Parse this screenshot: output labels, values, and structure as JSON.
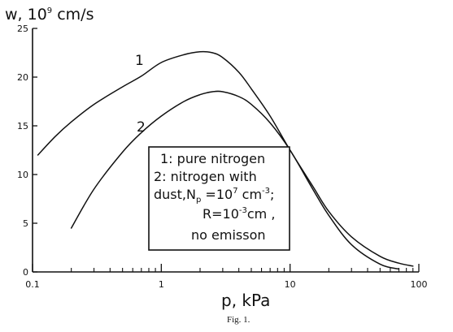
{
  "chart_data": {
    "type": "line",
    "title": "",
    "ylabel": {
      "main": "w, 10",
      "exp": "9",
      "unit": " cm/s"
    },
    "xlabel": "p, kPa",
    "caption": "Fig. 1.",
    "x_scale": "log",
    "xlim": [
      0.1,
      100
    ],
    "ylim": [
      0,
      25
    ],
    "x_ticks": [
      "0.1",
      "1",
      "10",
      "100"
    ],
    "y_ticks": [
      "0",
      "5",
      "10",
      "15",
      "20",
      "25"
    ],
    "series": [
      {
        "name": "1",
        "x": [
          0.11,
          0.15,
          0.2,
          0.3,
          0.5,
          0.7,
          1.0,
          1.5,
          2.0,
          2.5,
          3.0,
          4.0,
          5.0,
          7.0,
          10,
          15,
          20,
          30,
          50,
          70,
          90
        ],
        "y": [
          12.0,
          13.9,
          15.4,
          17.2,
          19.0,
          20.1,
          21.5,
          22.3,
          22.6,
          22.5,
          22.0,
          20.5,
          18.8,
          16.0,
          12.5,
          8.8,
          6.2,
          3.6,
          1.6,
          0.9,
          0.6
        ]
      },
      {
        "name": "2",
        "x": [
          0.2,
          0.3,
          0.5,
          0.7,
          1.0,
          1.5,
          2.0,
          2.5,
          3.0,
          4.0,
          5.0,
          7.0,
          10,
          15,
          20,
          30,
          50,
          70
        ],
        "y": [
          4.5,
          8.5,
          12.3,
          14.3,
          16.0,
          17.5,
          18.2,
          18.5,
          18.5,
          18.0,
          17.2,
          15.3,
          12.5,
          8.5,
          5.8,
          2.8,
          0.8,
          0.3
        ]
      }
    ],
    "legend": {
      "line1": "1: pure nitrogen",
      "line2": "2: nitrogen with",
      "line3_a": "dust,N",
      "line3_sub": "p",
      "line3_b": " =10",
      "line3_sup": "7",
      "line3_c": " cm",
      "line3_sup2": "-3",
      "line3_d": ";",
      "line4_a": "R=10",
      "line4_sup": "-3",
      "line4_b": "cm ,",
      "line5": "no emisson"
    }
  }
}
